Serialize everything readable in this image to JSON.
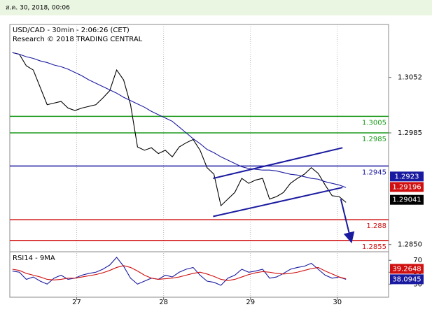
{
  "header": {
    "date": "ส.ค. 30, 2018, 00:06"
  },
  "chart_data": [
    {
      "type": "line",
      "title": "USD/CAD - 30min - 2:06:26 (CET)",
      "subtitle": "Research © 2018 TRADING CENTRAL",
      "x": [
        26.26,
        26.34,
        26.42,
        26.5,
        26.58,
        26.66,
        26.74,
        26.82,
        26.9,
        26.98,
        27.06,
        27.14,
        27.22,
        27.3,
        27.38,
        27.46,
        27.54,
        27.62,
        27.7,
        27.78,
        27.86,
        27.94,
        28.02,
        28.1,
        28.18,
        28.26,
        28.34,
        28.42,
        28.5,
        28.58,
        28.66,
        28.74,
        28.82,
        28.9,
        28.98,
        29.06,
        29.14,
        29.22,
        29.3,
        29.38,
        29.46,
        29.54,
        29.62,
        29.7,
        29.78,
        29.86,
        29.94,
        30.02,
        30.1
      ],
      "series": [
        {
          "name": "USD/CAD",
          "color": "#000000",
          "values": [
            1.3082,
            1.308,
            1.3066,
            1.3061,
            1.304,
            1.3019,
            1.3021,
            1.3023,
            1.3015,
            1.3012,
            1.3015,
            1.3017,
            1.3019,
            1.3027,
            1.3036,
            1.3061,
            1.3049,
            1.3019,
            1.2968,
            1.2964,
            1.2967,
            1.296,
            1.2964,
            1.2956,
            1.2968,
            1.2973,
            1.2977,
            1.2964,
            1.2943,
            1.2935,
            1.2897,
            1.2905,
            1.2913,
            1.293,
            1.2924,
            1.2928,
            1.293,
            1.2905,
            1.2908,
            1.2913,
            1.2924,
            1.293,
            1.2935,
            1.2943,
            1.2936,
            1.2922,
            1.2909,
            1.2908,
            1.2901
          ]
        },
        {
          "name": "MA",
          "color": "#1a1aa0",
          "values": [
            1.3082,
            1.308,
            1.3077,
            1.3075,
            1.3072,
            1.307,
            1.3067,
            1.3065,
            1.3062,
            1.3058,
            1.3054,
            1.3049,
            1.3045,
            1.3041,
            1.3037,
            1.3033,
            1.3028,
            1.3024,
            1.302,
            1.3016,
            1.3011,
            1.3007,
            1.3003,
            1.2999,
            1.2992,
            1.2985,
            1.2978,
            1.2972,
            1.2965,
            1.2961,
            1.2956,
            1.2952,
            1.2948,
            1.2944,
            1.2942,
            1.2941,
            1.294,
            1.294,
            1.2939,
            1.2937,
            1.2935,
            1.2934,
            1.2932,
            1.293,
            1.2929,
            1.2926,
            1.2924,
            1.2922,
            1.2919
          ]
        }
      ],
      "xlim": [
        26.23,
        30.59
      ],
      "xticks": [
        27,
        28,
        29,
        30
      ],
      "ylim": [
        1.2843,
        1.3116
      ],
      "yticks": [
        1.3052,
        1.2985,
        {
          "value": 1.285,
          "label": "1.2850"
        }
      ],
      "levels": [
        {
          "value": 1.3005,
          "color": "#1a9a1a"
        },
        {
          "value": 1.2985,
          "color": "#1a9a1a"
        },
        {
          "value": 1.2945,
          "color": "#1a1aa0"
        },
        {
          "value": 1.288,
          "color": "#d01010"
        },
        {
          "value": 1.2855,
          "color": "#d01010"
        }
      ],
      "channel": [
        {
          "x": [
            28.57,
            30.06
          ],
          "y": [
            1.293,
            1.2967
          ]
        },
        {
          "x": [
            28.57,
            30.06
          ],
          "y": [
            1.2884,
            1.2919
          ]
        }
      ],
      "arrow": {
        "x": [
          30.04,
          30.15
        ],
        "y": [
          1.2905,
          1.2858
        ]
      },
      "price_tags": [
        {
          "value": 1.2923,
          "color": "#1a1aa0"
        },
        {
          "value": 1.29196,
          "color": "#d01010"
        },
        {
          "value": 1.29041,
          "color": "#000000"
        }
      ]
    },
    {
      "type": "line",
      "title": "RSI14 - 9MA",
      "x": [
        26.26,
        26.34,
        26.42,
        26.5,
        26.58,
        26.66,
        26.74,
        26.82,
        26.9,
        26.98,
        27.06,
        27.14,
        27.22,
        27.3,
        27.38,
        27.46,
        27.54,
        27.62,
        27.7,
        27.78,
        27.86,
        27.94,
        28.02,
        28.1,
        28.18,
        28.26,
        28.34,
        28.42,
        28.5,
        28.58,
        28.66,
        28.74,
        28.82,
        28.9,
        28.98,
        29.06,
        29.14,
        29.22,
        29.3,
        29.38,
        29.46,
        29.54,
        29.62,
        29.7,
        29.78,
        29.86,
        29.94,
        30.02,
        30.1
      ],
      "series": [
        {
          "name": "RSI14",
          "color": "#1a1aa0",
          "values": [
            52,
            50,
            38,
            42,
            35,
            30,
            40,
            45,
            38,
            40,
            45,
            48,
            50,
            55,
            62,
            75,
            60,
            40,
            30,
            35,
            40,
            38,
            45,
            42,
            50,
            55,
            58,
            45,
            35,
            33,
            28,
            40,
            45,
            55,
            50,
            52,
            55,
            40,
            42,
            48,
            55,
            58,
            60,
            65,
            55,
            45,
            40,
            42,
            38
          ]
        },
        {
          "name": "9MA",
          "color": "#d01010",
          "values": [
            55,
            53,
            48,
            45,
            42,
            38,
            37,
            38,
            40,
            40,
            42,
            44,
            46,
            49,
            53,
            58,
            61,
            58,
            52,
            45,
            40,
            38,
            39,
            40,
            42,
            45,
            48,
            50,
            47,
            43,
            38,
            36,
            38,
            42,
            46,
            49,
            51,
            50,
            48,
            47,
            48,
            50,
            53,
            56,
            58,
            52,
            47,
            42,
            39
          ]
        }
      ],
      "xlim": [
        26.23,
        30.59
      ],
      "ylim": [
        8,
        82
      ],
      "yticks": [
        30,
        50,
        70
      ],
      "price_tags": [
        {
          "value": 39.2648,
          "color": "#d01010"
        },
        {
          "value": 38.0945,
          "color": "#1a1aa0"
        }
      ]
    }
  ]
}
